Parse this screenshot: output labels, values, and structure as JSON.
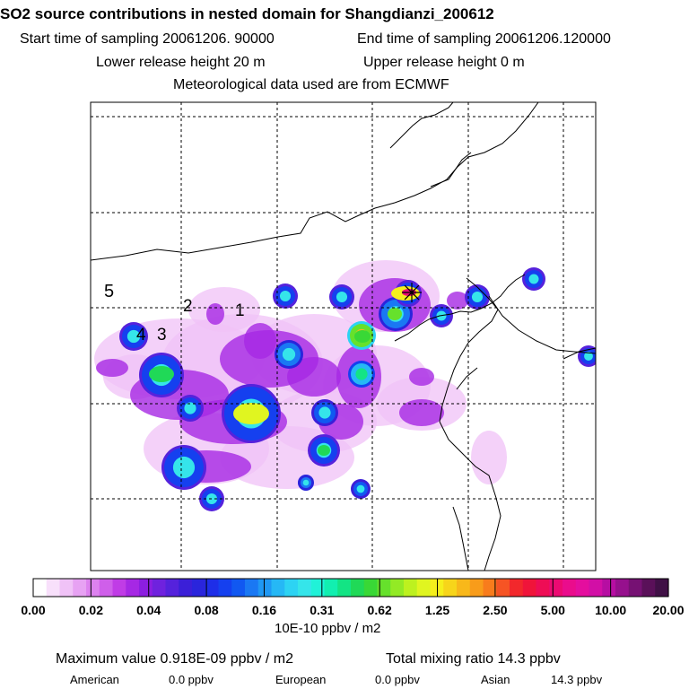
{
  "header": {
    "title": "SO2 source contributions in nested domain for Shangdianzi_200612",
    "start_time": "Start time of sampling 20061206. 90000",
    "end_time": "End time of sampling 20061206.120000",
    "lower_release": "Lower release height   20 m",
    "upper_release": "Upper release height    0 m",
    "meteo": "Meteorological data used are from ECMWF"
  },
  "colors": {
    "frame": "#000000",
    "grid": "#000000",
    "background": "#ffffff"
  },
  "chart_data": {
    "type": "heatmap",
    "units_label": "10E-10 ppbv / m2",
    "colorbar": {
      "tick_labels": [
        "0.00",
        "0.02",
        "0.04",
        "0.08",
        "0.16",
        "0.31",
        "0.62",
        "1.25",
        "2.50",
        "5.00",
        "10.00",
        "20.00"
      ],
      "colors": [
        "#ffffff",
        "#f8e0fb",
        "#f0c2f7",
        "#e7a2f3",
        "#dd82ef",
        "#cf5fea",
        "#c03ce6",
        "#a628e4",
        "#8c1ee0",
        "#6f22de",
        "#5522dc",
        "#3b1fd8",
        "#2a25dc",
        "#1e2ee8",
        "#1540ef",
        "#1158f1",
        "#1a78f3",
        "#1f98f4",
        "#26b8f5",
        "#2dd3f3",
        "#35e5ea",
        "#20f2d8",
        "#12efb0",
        "#13e484",
        "#20d957",
        "#39d836",
        "#66e12c",
        "#93ea25",
        "#bdf11f",
        "#e0f520",
        "#f5ef1c",
        "#f7d51a",
        "#f8b81a",
        "#f89c1a",
        "#f87c1c",
        "#f65424",
        "#f2282c",
        "#f0143a",
        "#ee0d55",
        "#ec0a72",
        "#ea0c8c",
        "#e40e9e",
        "#d20fa6",
        "#b60ea2",
        "#96108d",
        "#761173",
        "#5a1059",
        "#401046"
      ]
    },
    "receptor": {
      "name": "Shangdianzi",
      "marker": "star"
    },
    "levels": [
      "1",
      "2",
      "3",
      "4",
      "5"
    ],
    "plumes": [
      {
        "level": 4,
        "strength": 0.3
      },
      {
        "level": 4,
        "strength": 0.2
      },
      {
        "level": 3,
        "strength": 0.35
      },
      {
        "level": 3,
        "strength": 0.42
      },
      {
        "level": 2,
        "strength": 0.58
      },
      {
        "level": 2,
        "strength": 0.52
      },
      {
        "level": 2,
        "strength": 0.4
      },
      {
        "level": 2,
        "strength": 0.45
      },
      {
        "level": 2,
        "strength": 0.36
      },
      {
        "level": 1,
        "strength": 0.64
      },
      {
        "level": 1,
        "strength": 0.92
      },
      {
        "level": 1,
        "strength": 0.55
      },
      {
        "level": 1,
        "strength": 0.48
      },
      {
        "level": 1,
        "strength": 0.46
      },
      {
        "level": 1,
        "strength": 0.4
      }
    ],
    "max_value": "Maximum value  0.918E-09 ppbv / m2",
    "total_mixing_ratio": "Total mixing ratio       14.3 ppbv",
    "contributions": [
      {
        "region": "American",
        "value": "0.0 ppbv"
      },
      {
        "region": "European",
        "value": "0.0 ppbv"
      },
      {
        "region": "Asian",
        "value": "14.3 ppbv"
      }
    ]
  }
}
